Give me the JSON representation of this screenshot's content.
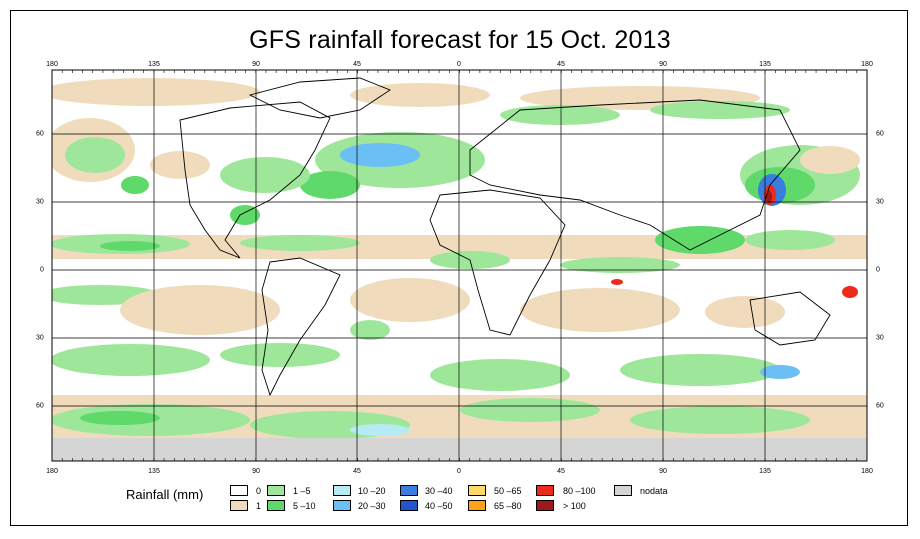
{
  "title": "GFS rainfall forecast for 15 Oct. 2013",
  "lon_ticks": [
    "180",
    "135",
    "90",
    "45",
    "0",
    "45",
    "90",
    "135",
    "180"
  ],
  "lat_ticks": [
    "60",
    "30",
    "0",
    "30",
    "60"
  ],
  "legend": {
    "title": "Rainfall (mm)",
    "items": [
      {
        "label": "0",
        "color": "#ffffff"
      },
      {
        "label": "1",
        "color": "#f0dcbc"
      },
      {
        "label": "1 –5",
        "color": "#9ee79a"
      },
      {
        "label": "5 –10",
        "color": "#5fd96a"
      },
      {
        "label": "10 –20",
        "color": "#b4ebf5"
      },
      {
        "label": "20 –30",
        "color": "#6cbff4"
      },
      {
        "label": "30 –40",
        "color": "#3a7de0"
      },
      {
        "label": "40 –50",
        "color": "#2255d6"
      },
      {
        "label": "50 –65",
        "color": "#ffd966"
      },
      {
        "label": "65 –80",
        "color": "#ffa21a"
      },
      {
        "label": "80 –100",
        "color": "#ee2a1a"
      },
      {
        "label": "> 100",
        "color": "#a01818"
      },
      {
        "label": "nodata",
        "color": "#d5d5d5"
      }
    ]
  }
}
